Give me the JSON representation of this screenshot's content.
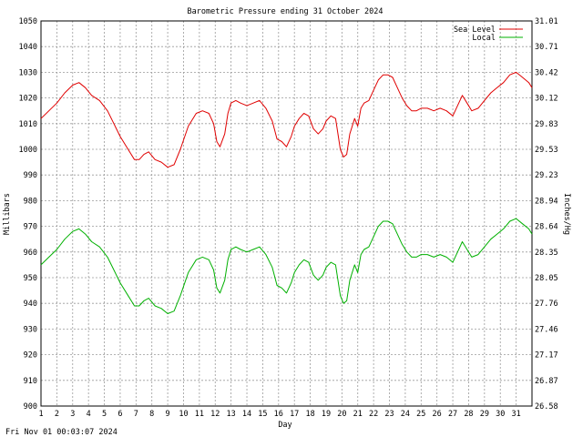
{
  "chart_data": {
    "type": "line",
    "title": "Barometric Pressure ending 31 October 2024",
    "xlabel": "Day",
    "ylabel": "Millibars",
    "y2label": "Inches/Hg",
    "footer": "Fri Nov 01 00:03:07 2024",
    "xlim": [
      1,
      32
    ],
    "ylim": [
      900,
      1050
    ],
    "x_ticks": [
      "1",
      "2",
      "3",
      "4",
      "5",
      "6",
      "7",
      "8",
      "9",
      "10",
      "11",
      "12",
      "13",
      "14",
      "15",
      "16",
      "17",
      "18",
      "19",
      "20",
      "21",
      "22",
      "23",
      "24",
      "25",
      "26",
      "27",
      "28",
      "29",
      "30",
      "31"
    ],
    "y_ticks": [
      "900",
      "910",
      "920",
      "930",
      "940",
      "950",
      "960",
      "970",
      "980",
      "990",
      "1000",
      "1010",
      "1020",
      "1030",
      "1040",
      "1050"
    ],
    "y2_ticks": [
      "26.58",
      "26.87",
      "27.17",
      "27.46",
      "27.76",
      "28.05",
      "28.35",
      "28.64",
      "28.94",
      "29.23",
      "29.53",
      "29.83",
      "30.12",
      "30.42",
      "30.71",
      "31.01"
    ],
    "grid": true,
    "legend": "top-right",
    "series": [
      {
        "name": "Sea Level",
        "color": "#e00000",
        "x": [
          1,
          1.5,
          2,
          2.5,
          3,
          3.4,
          3.8,
          4.2,
          4.7,
          5.2,
          5.6,
          6,
          6.5,
          6.9,
          7.2,
          7.5,
          7.8,
          8.2,
          8.6,
          9,
          9.4,
          9.8,
          10.3,
          10.8,
          11.2,
          11.6,
          11.9,
          12.1,
          12.3,
          12.6,
          12.8,
          13,
          13.3,
          13.6,
          14,
          14.4,
          14.8,
          15.2,
          15.6,
          15.9,
          16.2,
          16.5,
          16.8,
          17,
          17.3,
          17.6,
          17.9,
          18.2,
          18.5,
          18.8,
          19,
          19.3,
          19.6,
          19.9,
          20.1,
          20.3,
          20.5,
          20.8,
          21,
          21.2,
          21.4,
          21.7,
          22,
          22.3,
          22.6,
          22.9,
          23.2,
          23.5,
          23.8,
          24.1,
          24.4,
          24.7,
          25,
          25.4,
          25.8,
          26.2,
          26.6,
          27,
          27.3,
          27.6,
          27.9,
          28.2,
          28.6,
          29,
          29.4,
          29.8,
          30.2,
          30.6,
          31,
          31.4,
          31.8,
          32
        ],
        "values": [
          1012,
          1015,
          1018,
          1022,
          1025,
          1026,
          1024,
          1021,
          1019,
          1015,
          1010,
          1005,
          1000,
          996,
          996,
          998,
          999,
          996,
          995,
          993,
          994,
          1000,
          1009,
          1014,
          1015,
          1014,
          1010,
          1003,
          1001,
          1006,
          1014,
          1018,
          1019,
          1018,
          1017,
          1018,
          1019,
          1016,
          1011,
          1004,
          1003,
          1001,
          1005,
          1009,
          1012,
          1014,
          1013,
          1008,
          1006,
          1008,
          1011,
          1013,
          1012,
          1000,
          997,
          998,
          1006,
          1012,
          1009,
          1016,
          1018,
          1019,
          1023,
          1027,
          1029,
          1029,
          1028,
          1024,
          1020,
          1017,
          1015,
          1015,
          1016,
          1016,
          1015,
          1016,
          1015,
          1013,
          1017,
          1021,
          1018,
          1015,
          1016,
          1019,
          1022,
          1024,
          1026,
          1029,
          1030,
          1028,
          1026,
          1024
        ]
      },
      {
        "name": "Local",
        "color": "#00b000",
        "x": [
          1,
          1.5,
          2,
          2.5,
          3,
          3.4,
          3.8,
          4.2,
          4.7,
          5.2,
          5.6,
          6,
          6.5,
          6.9,
          7.2,
          7.5,
          7.8,
          8.2,
          8.6,
          9,
          9.4,
          9.8,
          10.3,
          10.8,
          11.2,
          11.6,
          11.9,
          12.1,
          12.3,
          12.6,
          12.8,
          13,
          13.3,
          13.6,
          14,
          14.4,
          14.8,
          15.2,
          15.6,
          15.9,
          16.2,
          16.5,
          16.8,
          17,
          17.3,
          17.6,
          17.9,
          18.2,
          18.5,
          18.8,
          19,
          19.3,
          19.6,
          19.9,
          20.1,
          20.3,
          20.5,
          20.8,
          21,
          21.2,
          21.4,
          21.7,
          22,
          22.3,
          22.6,
          22.9,
          23.2,
          23.5,
          23.8,
          24.1,
          24.4,
          24.7,
          25,
          25.4,
          25.8,
          26.2,
          26.6,
          27,
          27.3,
          27.6,
          27.9,
          28.2,
          28.6,
          29,
          29.4,
          29.8,
          30.2,
          30.6,
          31,
          31.4,
          31.8,
          32
        ],
        "values": [
          955,
          958,
          961,
          965,
          968,
          969,
          967,
          964,
          962,
          958,
          953,
          948,
          943,
          939,
          939,
          941,
          942,
          939,
          938,
          936,
          937,
          943,
          952,
          957,
          958,
          957,
          953,
          946,
          944,
          949,
          957,
          961,
          962,
          961,
          960,
          961,
          962,
          959,
          954,
          947,
          946,
          944,
          948,
          952,
          955,
          957,
          956,
          951,
          949,
          951,
          954,
          956,
          955,
          943,
          940,
          941,
          949,
          955,
          952,
          959,
          961,
          962,
          966,
          970,
          972,
          972,
          971,
          967,
          963,
          960,
          958,
          958,
          959,
          959,
          958,
          959,
          958,
          956,
          960,
          964,
          961,
          958,
          959,
          962,
          965,
          967,
          969,
          972,
          973,
          971,
          969,
          967
        ]
      }
    ]
  }
}
